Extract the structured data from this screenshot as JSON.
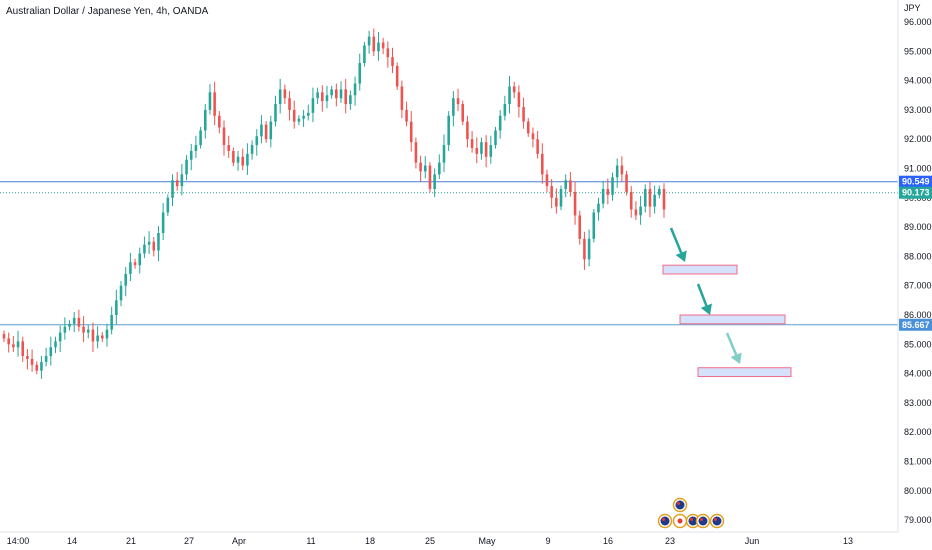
{
  "chart_data": {
    "type": "candlestick",
    "title": "Australian Dollar / Japanese Yen, 4h, OANDA",
    "currency": "JPY",
    "ylim": [
      78.6,
      96.3
    ],
    "y_ticks": [
      "96.000",
      "95.000",
      "94.000",
      "93.000",
      "92.000",
      "91.000",
      "90.000",
      "89.000",
      "88.000",
      "87.000",
      "86.000",
      "85.000",
      "84.000",
      "83.000",
      "82.000",
      "81.000",
      "80.000",
      "79.000"
    ],
    "x_labels": [
      "14:00",
      "14",
      "21",
      "27",
      "Apr",
      "11",
      "18",
      "25",
      "May",
      "9",
      "16",
      "23",
      "Jun",
      "13"
    ],
    "colors": {
      "up": "#26a69a",
      "down": "#ef5350",
      "line": "#2962ff",
      "axis_text": "#131722"
    },
    "price_lines": [
      {
        "value": 90.549,
        "label": "90.549",
        "color": "#4a7fd6",
        "style": "solid"
      },
      {
        "value": 90.173,
        "label": "90.173",
        "color": "#26a69a",
        "style": "dotted"
      },
      {
        "value": 85.667,
        "label": "85.667",
        "color": "#5aa0d0",
        "style": "solid"
      }
    ],
    "series": [
      {
        "close": [
          85.2,
          85.0,
          84.9,
          85.1,
          84.6,
          84.5,
          84.3,
          84.1,
          84.4,
          84.6,
          84.9,
          85.1,
          85.4,
          85.6,
          85.7,
          85.9,
          85.6,
          85.4,
          85.5,
          85.1,
          85.3,
          85.2,
          85.5,
          86.0,
          86.5,
          87.0,
          87.4,
          87.8,
          87.7,
          88.1,
          88.4,
          88.5,
          88.2,
          88.8,
          89.5,
          90.0,
          90.6,
          90.4,
          90.8,
          91.3,
          91.6,
          91.8,
          92.3,
          93.0,
          93.6,
          92.8,
          92.4,
          91.8,
          91.6,
          91.2,
          91.4,
          91.1,
          91.5,
          91.8,
          92.1,
          92.5,
          92.0,
          92.6,
          93.2,
          93.7,
          93.4,
          93.0,
          92.6,
          92.7,
          92.8,
          92.9,
          93.4,
          93.6,
          93.3,
          93.5,
          93.7,
          93.4,
          93.7,
          93.2,
          93.5,
          93.9,
          94.6,
          95.2,
          95.5,
          95.0,
          95.3,
          95.1,
          94.8,
          94.5,
          93.8,
          93.0,
          92.6,
          91.9,
          91.2,
          90.9,
          91.1,
          90.3,
          90.8,
          91.2,
          91.8,
          92.8,
          93.4,
          93.2,
          92.6,
          92.0,
          91.7,
          91.5,
          91.9,
          91.4,
          91.8,
          92.3,
          92.8,
          93.2,
          93.8,
          93.6,
          93.1,
          92.6,
          92.2,
          92.0,
          91.5,
          90.8,
          90.4,
          90.0,
          89.7,
          90.3,
          90.6,
          90.2,
          89.4,
          88.6,
          87.9,
          88.6,
          89.5,
          89.8,
          90.3,
          90.1,
          90.7,
          91.1,
          90.8,
          90.2,
          89.6,
          89.4,
          89.7,
          90.3,
          89.7,
          90.1,
          90.3,
          89.6
        ]
      }
    ],
    "zones": [
      {
        "from": 87.4,
        "to": 87.7,
        "x_start": "23",
        "x_end": "27 May"
      },
      {
        "from": 85.7,
        "to": 86.0,
        "x_start": "24 May",
        "x_end": "Jun"
      },
      {
        "from": 83.9,
        "to": 84.2,
        "x_start": "25 May",
        "x_end": "Jun"
      }
    ],
    "arrows": [
      {
        "label": "down-arrow-1",
        "color": "#26a69a"
      },
      {
        "label": "down-arrow-2",
        "color": "#26a69a"
      },
      {
        "label": "down-arrow-3",
        "color": "#7fcfc6"
      }
    ],
    "events": [
      "AU",
      "AU",
      "JP",
      "AU",
      "AU",
      "AU"
    ]
  }
}
